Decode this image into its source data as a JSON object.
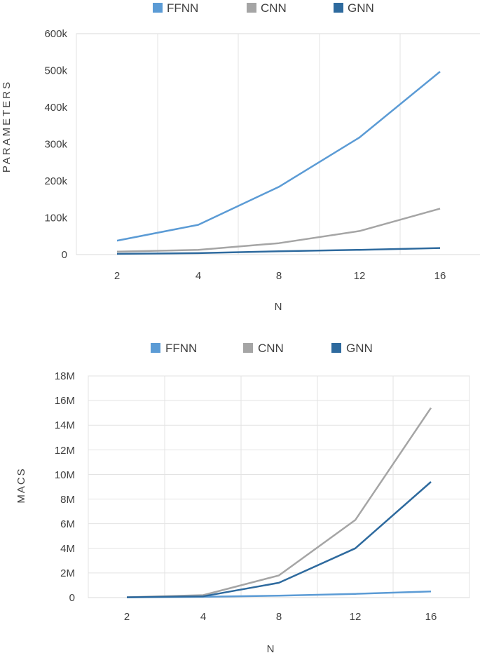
{
  "chart_data": [
    {
      "type": "line",
      "title": "",
      "xlabel": "N",
      "ylabel": "PARAMETERS",
      "categories": [
        "2",
        "4",
        "8",
        "12",
        "16"
      ],
      "y_tick_labels": [
        "0",
        "100k",
        "200k",
        "300k",
        "400k",
        "500k",
        "600k"
      ],
      "ylim": [
        0,
        600000
      ],
      "grid": "vertical",
      "legend_position": "top",
      "series": [
        {
          "name": "FFNN",
          "color": "#5B9BD5",
          "values": [
            38000,
            81000,
            184000,
            318000,
            497000
          ]
        },
        {
          "name": "CNN",
          "color": "#A5A5A5",
          "values": [
            8000,
            13000,
            31000,
            64000,
            125000
          ]
        },
        {
          "name": "GNN",
          "color": "#2E6A9E",
          "values": [
            2000,
            4000,
            9000,
            13000,
            18000
          ]
        }
      ]
    },
    {
      "type": "line",
      "title": "",
      "xlabel": "N",
      "ylabel": "MACS",
      "categories": [
        "2",
        "4",
        "8",
        "12",
        "16"
      ],
      "y_tick_labels": [
        "0",
        "2M",
        "4M",
        "6M",
        "8M",
        "10M",
        "12M",
        "14M",
        "16M",
        "18M"
      ],
      "ylim": [
        0,
        18000000
      ],
      "grid": "both",
      "legend_position": "top",
      "series": [
        {
          "name": "FFNN",
          "color": "#5B9BD5",
          "values": [
            20000,
            60000,
            160000,
            300000,
            500000
          ]
        },
        {
          "name": "CNN",
          "color": "#A5A5A5",
          "values": [
            30000,
            200000,
            1800000,
            6300000,
            15400000
          ]
        },
        {
          "name": "GNN",
          "color": "#2E6A9E",
          "values": [
            20000,
            100000,
            1200000,
            4000000,
            9400000
          ]
        }
      ]
    }
  ]
}
